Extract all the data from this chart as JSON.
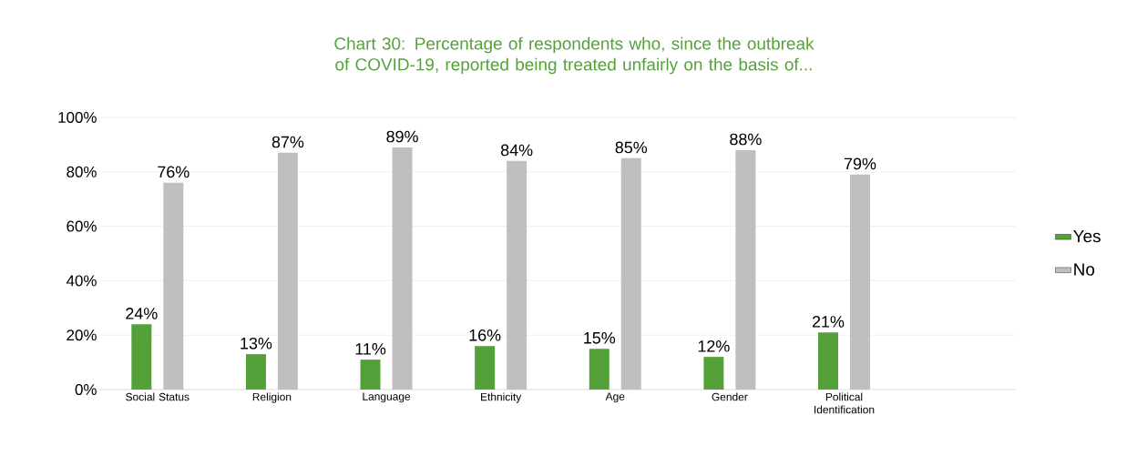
{
  "chart_data": {
    "type": "bar",
    "title": "Chart 30: Percentage of respondents who, since the outbreak of COVID-19, reported being treated unfairly on the basis of...",
    "categories": [
      "Social Status",
      "Religion",
      "Language",
      "Ethnicity",
      "Age",
      "Gender",
      "Political Identification",
      null
    ],
    "series": [
      {
        "name": "Yes",
        "color": "#54a13a",
        "values": [
          24,
          13,
          11,
          16,
          15,
          12,
          21,
          null
        ],
        "value_labels": [
          "24%",
          "13%",
          "11%",
          "16%",
          "15%",
          "12%",
          "21%",
          null
        ]
      },
      {
        "name": "No",
        "color": "#bfbfbf",
        "values": [
          76,
          87,
          89,
          84,
          85,
          88,
          79,
          null
        ],
        "value_labels": [
          "76%",
          "87%",
          "89%",
          "84%",
          "85%",
          "88%",
          "79%",
          null
        ]
      }
    ],
    "ylim": [
      0,
      100
    ],
    "yticks": [
      {
        "value": 0,
        "label": "0%"
      },
      {
        "value": 20,
        "label": "20%"
      },
      {
        "value": 40,
        "label": "40%"
      },
      {
        "value": 60,
        "label": "60%"
      },
      {
        "value": 80,
        "label": "80%"
      },
      {
        "value": 100,
        "label": "100%"
      }
    ],
    "grid": "y",
    "legend": "right"
  }
}
